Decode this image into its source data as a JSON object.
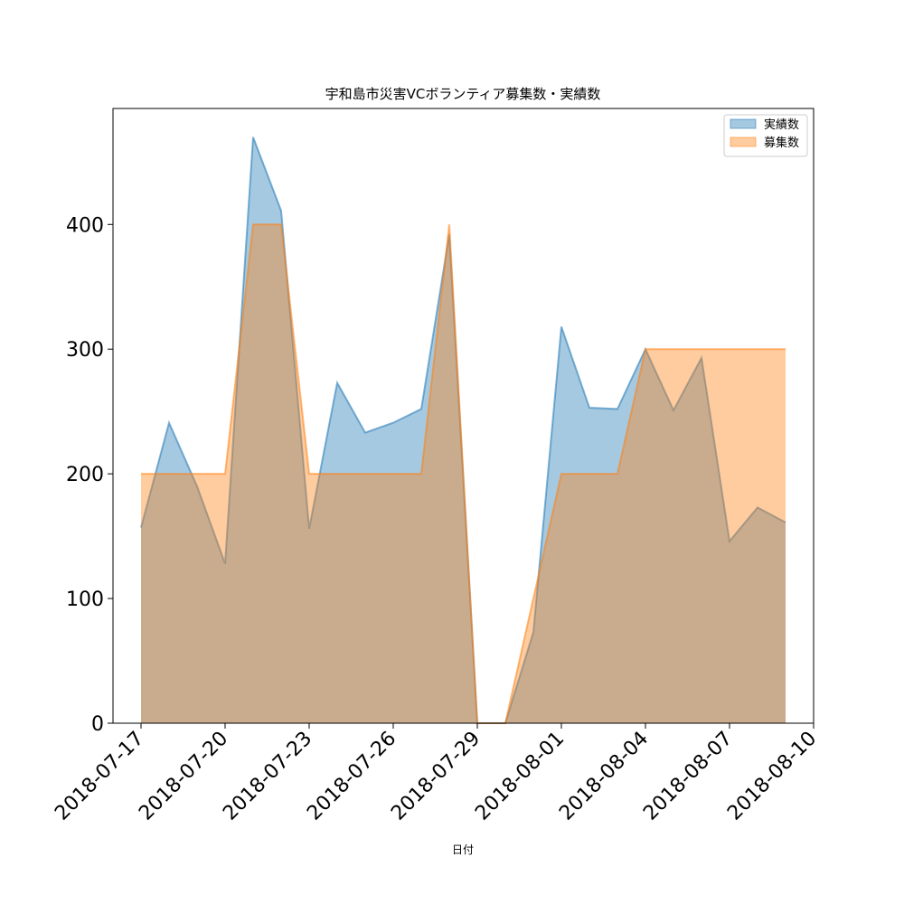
{
  "chart_data": {
    "type": "area",
    "title": "宇和島市災害VCボランティア募集数・実績数",
    "xlabel": "日付",
    "ylabel": "",
    "x": [
      "2018-07-17",
      "2018-07-18",
      "2018-07-19",
      "2018-07-20",
      "2018-07-21",
      "2018-07-22",
      "2018-07-23",
      "2018-07-24",
      "2018-07-25",
      "2018-07-26",
      "2018-07-27",
      "2018-07-28",
      "2018-07-29",
      "2018-07-30",
      "2018-07-31",
      "2018-08-01",
      "2018-08-02",
      "2018-08-03",
      "2018-08-04",
      "2018-08-05",
      "2018-08-06",
      "2018-08-07",
      "2018-08-08",
      "2018-08-09"
    ],
    "series": [
      {
        "name": "実績数",
        "color": "#1f77b4",
        "values": [
          157,
          241,
          190,
          128,
          470,
          411,
          156,
          273,
          233,
          241,
          252,
          392,
          0,
          0,
          73,
          318,
          253,
          252,
          300,
          251,
          293,
          146,
          173,
          161
        ]
      },
      {
        "name": "募集数",
        "color": "#ff7f0e",
        "values": [
          200,
          200,
          200,
          200,
          400,
          400,
          200,
          200,
          200,
          200,
          200,
          400,
          0,
          0,
          100,
          200,
          200,
          200,
          300,
          300,
          300,
          300,
          300,
          300
        ]
      }
    ],
    "xticks": [
      "2018-07-17",
      "2018-07-20",
      "2018-07-23",
      "2018-07-26",
      "2018-07-29",
      "2018-08-01",
      "2018-08-04",
      "2018-08-07",
      "2018-08-10"
    ],
    "yticks": [
      0,
      100,
      200,
      300,
      400
    ],
    "xlim": [
      "2018-07-16",
      "2018-08-10"
    ],
    "ylim": [
      0,
      493
    ],
    "grid": false,
    "legend": "top-right"
  }
}
